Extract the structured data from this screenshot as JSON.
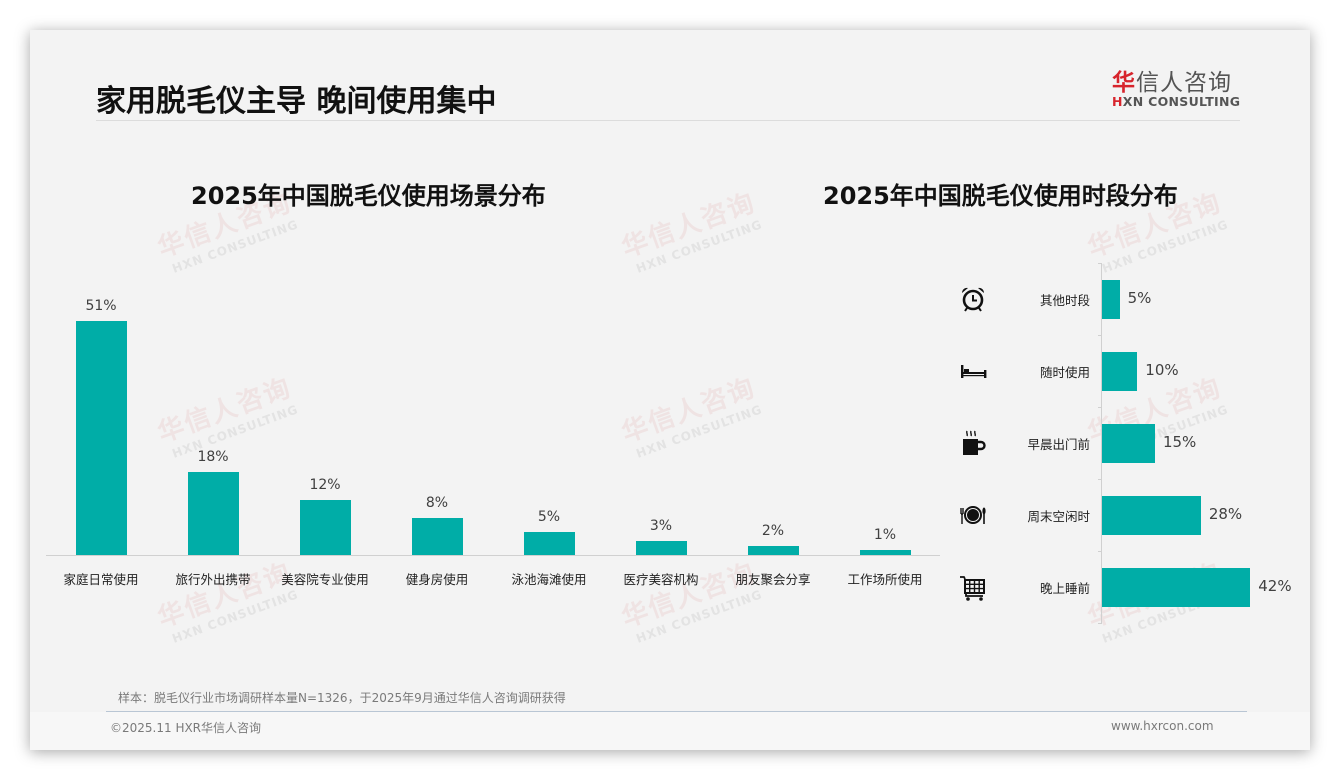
{
  "page": {
    "title": "家用脱毛仪主导 晚间使用集中",
    "logo": {
      "cn_red": "华",
      "cn_rest": "信人咨询",
      "en_red": "H",
      "en_rest": "XN CONSULTING"
    },
    "watermark": {
      "cn": "华信人咨询",
      "en": "HXN CONSULTING"
    },
    "note": "样本：脱毛仪行业市场调研样本量N=1326，于2025年9月通过华信人咨询调研获得",
    "copyright": "©2025.11 HXR华信人咨询",
    "website": "www.hxrcon.com",
    "colors": {
      "bar": "#00ada7",
      "brand_red": "#d7242c"
    }
  },
  "chart_data": [
    {
      "type": "bar",
      "title": "2025年中国脱毛仪使用场景分布",
      "categories": [
        "家庭日常使用",
        "旅行外出携带",
        "美容院专业使用",
        "健身房使用",
        "泳池海滩使用",
        "医疗美容机构",
        "朋友聚会分享",
        "工作场所使用"
      ],
      "values": [
        51,
        18,
        12,
        8,
        5,
        3,
        2,
        1
      ],
      "labels": [
        "51%",
        "18%",
        "12%",
        "8%",
        "5%",
        "3%",
        "2%",
        "1%"
      ],
      "unit": "%",
      "xlabel": "",
      "ylabel": "",
      "grid": false,
      "legend": null
    },
    {
      "type": "bar",
      "orientation": "horizontal",
      "title": "2025年中国脱毛仪使用时段分布",
      "categories": [
        "其他时段",
        "随时使用",
        "早晨出门前",
        "周末空闲时",
        "晚上睡前"
      ],
      "values": [
        5,
        10,
        15,
        28,
        42
      ],
      "labels": [
        "5%",
        "10%",
        "15%",
        "28%",
        "42%"
      ],
      "icons": [
        "alarm-clock-icon",
        "bed-icon",
        "hot-coffee-icon",
        "dining-plate-icon",
        "shopping-cart-icon"
      ],
      "unit": "%",
      "xlabel": "",
      "ylabel": "",
      "grid": false,
      "legend": null
    }
  ]
}
